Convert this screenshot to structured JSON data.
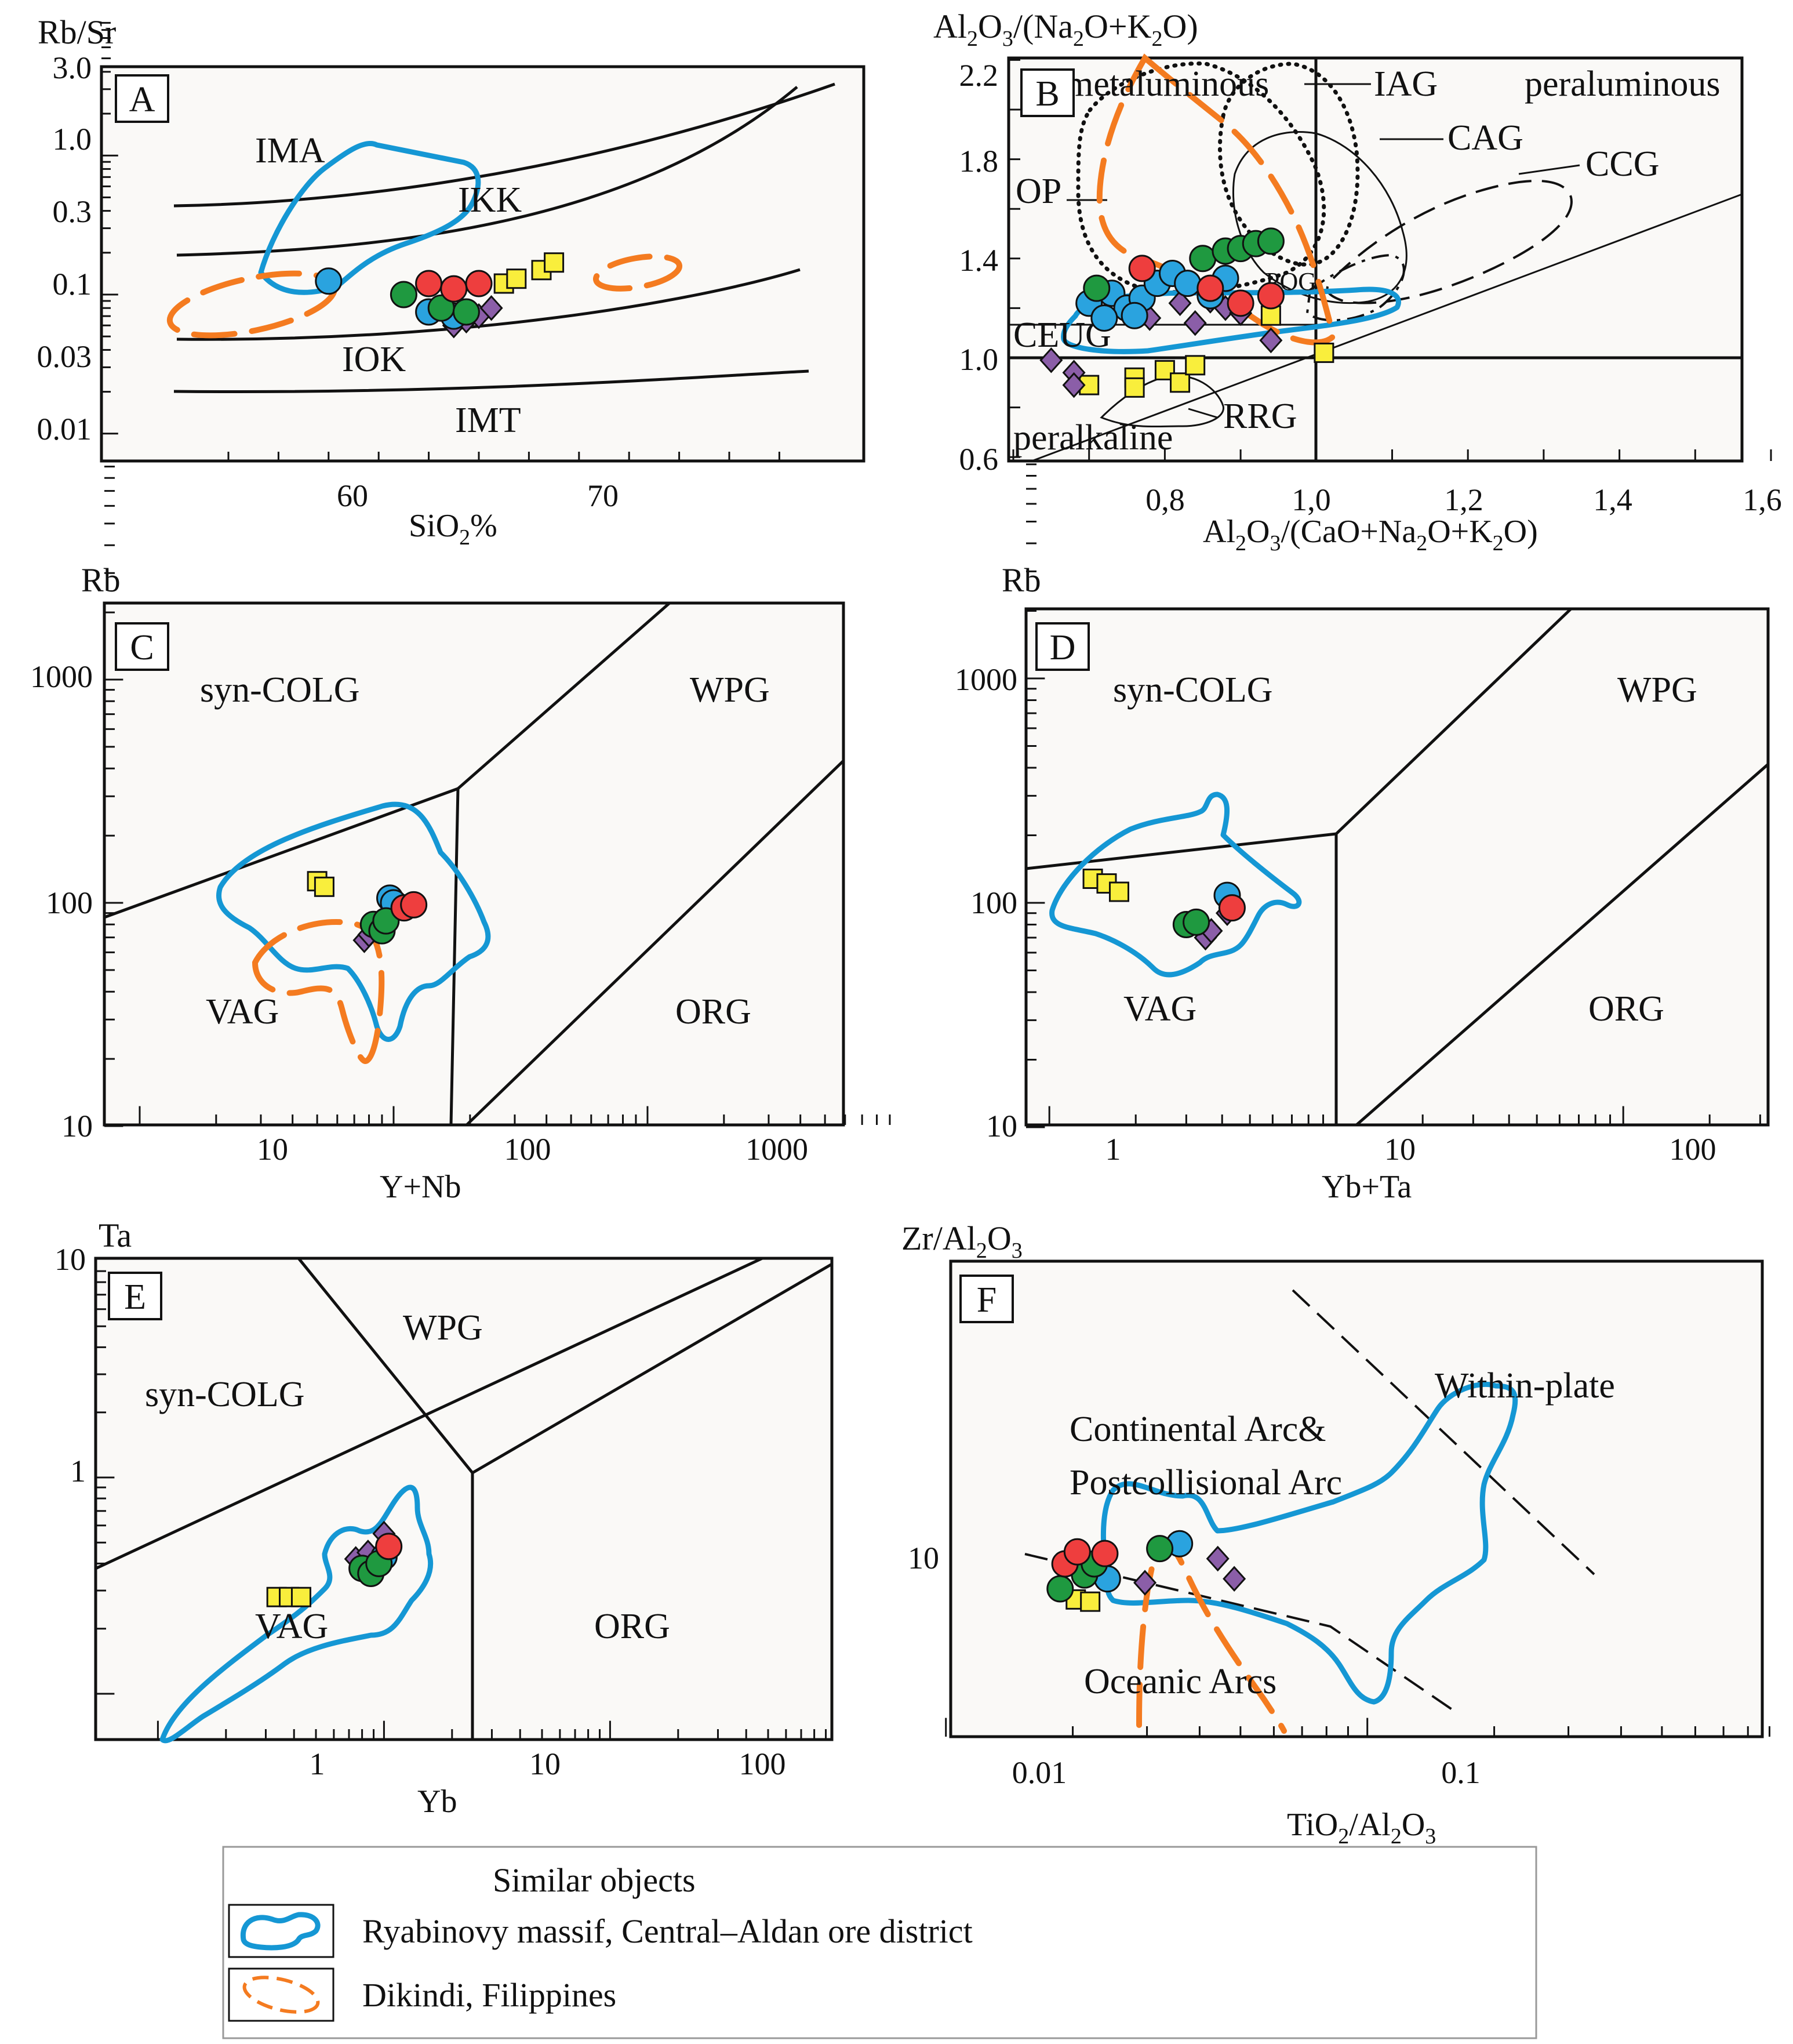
{
  "chart_data": [
    {
      "id": "A",
      "type": "scatter",
      "scale": "log-y",
      "ylabel": "Rb/Sr",
      "xlabel": "SiO2%",
      "xlabel_main": "SiO",
      "xlabel_sub": "2",
      "xlabel_tail": "%",
      "x_ticks": [
        "60",
        "70"
      ],
      "y_ticks": [
        "3.0",
        "1.0",
        "0.3",
        "0.1",
        "0.03",
        "0.01"
      ],
      "region_labels": [
        "IMA",
        "IKK",
        "IOK",
        "IMT"
      ],
      "points": {
        "red": [
          [
            63.0,
            0.12
          ],
          [
            64.0,
            0.11
          ],
          [
            65.0,
            0.12
          ]
        ],
        "blue": [
          [
            59.0,
            0.125
          ],
          [
            63.0,
            0.075
          ],
          [
            64.0,
            0.07
          ]
        ],
        "green": [
          [
            62.0,
            0.1
          ],
          [
            63.5,
            0.08
          ],
          [
            64.5,
            0.075
          ]
        ],
        "purple": [
          [
            64.0,
            0.06
          ],
          [
            64.5,
            0.065
          ],
          [
            65.0,
            0.07
          ],
          [
            65.5,
            0.08
          ]
        ],
        "yellow": [
          [
            66.0,
            0.12
          ],
          [
            66.5,
            0.13
          ],
          [
            67.5,
            0.15
          ],
          [
            68.0,
            0.17
          ]
        ]
      }
    },
    {
      "id": "B",
      "type": "scatter",
      "ylabel": "Al2O3/(Na2O+K2O)",
      "ylabel_parts": [
        "Al",
        "2",
        "O",
        "3",
        "/(Na",
        "2",
        "O+K",
        "2",
        "O)"
      ],
      "xlabel": "Al2O3/(CaO+Na2O+K2O)",
      "xlabel_parts": [
        "Al",
        "2",
        "O",
        "3",
        "/(CaO+Na",
        "2",
        "O+K",
        "2",
        "O)"
      ],
      "x_ticks": [
        "0,8",
        "1,0",
        "1,2",
        "1,4",
        "1,6"
      ],
      "y_ticks": [
        "2.2",
        "1.8",
        "1.4",
        "1.0",
        "0.6"
      ],
      "region_labels": [
        "metaluminous",
        "IAG",
        "peraluminous",
        "CAG",
        "CCG",
        "OP",
        "POG",
        "CEUG",
        "RRG",
        "peralkaline"
      ],
      "points": {
        "red": [
          [
            0.77,
            1.36
          ],
          [
            0.86,
            1.28
          ],
          [
            0.9,
            1.22
          ],
          [
            0.94,
            1.25
          ]
        ],
        "blue": [
          [
            0.7,
            1.22
          ],
          [
            0.73,
            1.26
          ],
          [
            0.75,
            1.2
          ],
          [
            0.77,
            1.24
          ],
          [
            0.79,
            1.3
          ],
          [
            0.81,
            1.34
          ],
          [
            0.83,
            1.3
          ],
          [
            0.86,
            1.25
          ],
          [
            0.88,
            1.32
          ],
          [
            0.76,
            1.17
          ],
          [
            0.72,
            1.16
          ]
        ],
        "green": [
          [
            0.71,
            1.28
          ],
          [
            0.85,
            1.4
          ],
          [
            0.88,
            1.43
          ],
          [
            0.9,
            1.44
          ],
          [
            0.92,
            1.46
          ],
          [
            0.94,
            1.47
          ]
        ],
        "purple": [
          [
            0.65,
            0.99
          ],
          [
            0.68,
            0.94
          ],
          [
            0.68,
            0.89
          ],
          [
            0.78,
            1.16
          ],
          [
            0.82,
            1.22
          ],
          [
            0.84,
            1.14
          ],
          [
            0.86,
            1.23
          ],
          [
            0.88,
            1.2
          ],
          [
            0.9,
            1.18
          ],
          [
            0.94,
            1.07
          ]
        ],
        "yellow": [
          [
            0.7,
            0.89
          ],
          [
            0.76,
            0.92
          ],
          [
            0.76,
            0.88
          ],
          [
            0.8,
            0.95
          ],
          [
            0.82,
            0.9
          ],
          [
            0.84,
            0.97
          ],
          [
            0.94,
            1.17
          ],
          [
            1.01,
            1.02
          ]
        ]
      }
    },
    {
      "id": "C",
      "type": "scatter",
      "scale": "log-log",
      "ylabel": "Rb",
      "xlabel": "Y+Nb",
      "x_ticks": [
        "10",
        "100",
        "1000"
      ],
      "y_ticks": [
        "1000",
        "100",
        "10"
      ],
      "region_labels": [
        "syn-COLG",
        "WPG",
        "VAG",
        "ORG"
      ],
      "points": {
        "red": [
          [
            33,
            95
          ],
          [
            36,
            98
          ]
        ],
        "blue": [
          [
            29,
            105
          ],
          [
            30,
            100
          ]
        ],
        "green": [
          [
            25,
            80
          ],
          [
            27,
            75
          ],
          [
            28,
            83
          ]
        ],
        "purple": [
          [
            23,
            68
          ],
          [
            24,
            72
          ]
        ],
        "yellow": [
          [
            15,
            125
          ],
          [
            16,
            118
          ]
        ]
      }
    },
    {
      "id": "D",
      "type": "scatter",
      "scale": "log-log",
      "ylabel": "Rb",
      "xlabel": "Yb+Ta",
      "x_ticks": [
        "1",
        "10",
        "100"
      ],
      "y_ticks": [
        "1000",
        "100",
        "10"
      ],
      "region_labels": [
        "syn-COLG",
        "WPG",
        "VAG",
        "ORG"
      ],
      "points": {
        "red": [
          [
            2.6,
            95
          ]
        ],
        "blue": [
          [
            2.5,
            108
          ]
        ],
        "green": [
          [
            1.8,
            80
          ],
          [
            1.95,
            82
          ]
        ],
        "purple": [
          [
            2.1,
            70
          ],
          [
            2.2,
            75
          ],
          [
            2.5,
            90
          ]
        ],
        "yellow": [
          [
            0.85,
            128
          ],
          [
            0.95,
            122
          ],
          [
            1.05,
            112
          ]
        ]
      }
    },
    {
      "id": "E",
      "type": "scatter",
      "scale": "log-log",
      "ylabel": "Ta",
      "xlabel": "Yb",
      "x_ticks": [
        "1",
        "10",
        "100"
      ],
      "y_ticks": [
        "10",
        "1"
      ],
      "region_labels": [
        "syn-COLG",
        "WPG",
        "VAG",
        "ORG"
      ],
      "points": {
        "red": [
          [
            2.1,
            0.48
          ]
        ],
        "blue": [
          [
            2.0,
            0.43
          ]
        ],
        "green": [
          [
            1.6,
            0.38
          ],
          [
            1.75,
            0.36
          ],
          [
            1.9,
            0.4
          ]
        ],
        "purple": [
          [
            1.5,
            0.42
          ],
          [
            1.7,
            0.45
          ],
          [
            2.0,
            0.55
          ]
        ],
        "yellow": [
          [
            0.67,
            0.28
          ],
          [
            0.76,
            0.28
          ],
          [
            0.86,
            0.28
          ]
        ]
      }
    },
    {
      "id": "F",
      "type": "scatter",
      "scale": "log-log",
      "ylabel": "Zr/Al2O3",
      "ylabel_main": "Zr/Al",
      "ylabel_sub1": "2",
      "ylabel_mid": "O",
      "ylabel_sub2": "3",
      "xlabel": "TiO2/Al2O3",
      "xlabel_parts": [
        "TiO",
        "2",
        "/Al",
        "2",
        "O",
        "3"
      ],
      "x_ticks": [
        "0.01",
        "0.1"
      ],
      "y_ticks": [
        "10"
      ],
      "region_labels": [
        "Within-plate",
        "Continental Arc&",
        "Postcollisional Arc",
        "Oceanic Arcs"
      ],
      "points": {
        "red": [
          [
            0.0115,
            9.6
          ],
          [
            0.0123,
            10.3
          ],
          [
            0.0143,
            10.2
          ]
        ],
        "blue": [
          [
            0.0145,
            8.8
          ],
          [
            0.0215,
            10.8
          ]
        ],
        "green": [
          [
            0.0112,
            8.3
          ],
          [
            0.0128,
            9.0
          ],
          [
            0.0135,
            9.6
          ],
          [
            0.0193,
            10.5
          ]
        ],
        "purple": [
          [
            0.0178,
            8.6
          ],
          [
            0.0265,
            9.9
          ],
          [
            0.029,
            8.8
          ]
        ],
        "yellow": [
          [
            0.0122,
            7.8
          ],
          [
            0.0132,
            7.7
          ]
        ]
      }
    }
  ],
  "legend": {
    "title": "Similar objects",
    "items": [
      {
        "label": "Ryabinovy massif, Central–Aldan ore district",
        "color": "#1597d4"
      },
      {
        "label": "Dikindi, Filippines",
        "color": "#f47b20"
      }
    ]
  },
  "colors": {
    "red": "#ee3e3e",
    "blue": "#2aa3df",
    "green": "#1f9940",
    "purple": "#8b5ea8",
    "yellow": "#f9ee3c",
    "outline_blue": "#1597d4",
    "outline_orange": "#f47b20"
  }
}
